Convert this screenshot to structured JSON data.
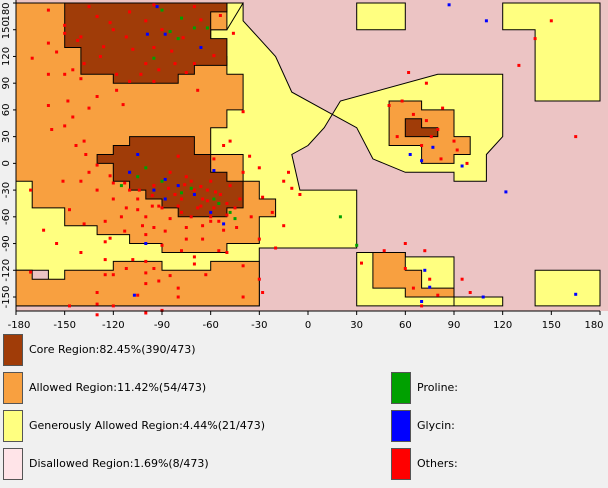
{
  "chart_data": {
    "type": "scatter",
    "title": "",
    "xlabel": "",
    "ylabel": "",
    "xlim": [
      -180,
      180
    ],
    "ylim": [
      -180,
      180
    ],
    "x_ticks": [
      -180,
      -150,
      -120,
      -90,
      -60,
      -30,
      0,
      30,
      60,
      90,
      120,
      150,
      180
    ],
    "y_ticks": [
      180,
      150,
      120,
      90,
      60,
      30,
      0,
      -30,
      -60,
      -90,
      -120,
      -150
    ],
    "regions": [
      {
        "name": "Disallowed Region",
        "color": "#ecc4c4"
      },
      {
        "name": "Generously Allowed Region",
        "color": "#ffff80"
      },
      {
        "name": "Allowed Region",
        "color": "#f8a040"
      },
      {
        "name": "Core Region",
        "color": "#a03c08"
      }
    ],
    "series": [
      {
        "name": "Proline",
        "color": "#00a000",
        "points": [
          [
            -90,
            172
          ],
          [
            -78,
            163
          ],
          [
            -70,
            152
          ],
          [
            -85,
            148
          ],
          [
            -95,
            118
          ],
          [
            -62,
            152
          ],
          [
            -80,
            140
          ],
          [
            -88,
            -40
          ],
          [
            -55,
            -45
          ],
          [
            -48,
            -55
          ],
          [
            -115,
            -25
          ],
          [
            -105,
            -15
          ],
          [
            -72,
            -28
          ],
          [
            -58,
            -40
          ],
          [
            -78,
            -33
          ],
          [
            -45,
            -62
          ],
          [
            -90,
            -20
          ],
          [
            -100,
            -5
          ],
          [
            20,
            -60
          ],
          [
            30,
            -92
          ]
        ]
      },
      {
        "name": "Glycin",
        "color": "#0000ff",
        "points": [
          [
            -105,
            10
          ],
          [
            -95,
            -30
          ],
          [
            -80,
            -25
          ],
          [
            -110,
            -10
          ],
          [
            -88,
            -40
          ],
          [
            -60,
            -55
          ],
          [
            -88,
            145
          ],
          [
            -66,
            130
          ],
          [
            -99,
            145
          ],
          [
            -58,
            -8
          ],
          [
            -93,
            176
          ],
          [
            -52,
            -68
          ],
          [
            -100,
            -90
          ],
          [
            -107,
            -148
          ],
          [
            70,
            -155
          ],
          [
            -88,
            -18
          ],
          [
            -70,
            -35
          ],
          [
            72,
            -120
          ],
          [
            75,
            -139
          ],
          [
            108,
            -150
          ],
          [
            122,
            -32
          ],
          [
            165,
            -147
          ],
          [
            87,
            178
          ],
          [
            110,
            160
          ],
          [
            95,
            -3
          ],
          [
            77,
            18
          ],
          [
            63,
            10
          ],
          [
            70,
            3
          ]
        ]
      },
      {
        "name": "Others",
        "color": "#ff0000",
        "points": [
          [
            -171,
            -30
          ],
          [
            -171,
            -122
          ],
          [
            -160,
            172
          ],
          [
            -150,
            155
          ],
          [
            -140,
            142
          ],
          [
            -130,
            165
          ],
          [
            -110,
            170
          ],
          [
            -100,
            160
          ],
          [
            -120,
            150
          ],
          [
            -108,
            128
          ],
          [
            -128,
            120
          ],
          [
            -142,
            138
          ],
          [
            -155,
            125
          ],
          [
            -118,
            100
          ],
          [
            -100,
            112
          ],
          [
            -95,
            130
          ],
          [
            -112,
            142
          ],
          [
            -90,
            150
          ],
          [
            -145,
            105
          ],
          [
            -160,
            100
          ],
          [
            -138,
            112
          ],
          [
            -118,
            82
          ],
          [
            -130,
            75
          ],
          [
            -150,
            100
          ],
          [
            -110,
            92
          ],
          [
            -95,
            92
          ],
          [
            -75,
            102
          ],
          [
            -68,
            82
          ],
          [
            -82,
            112
          ],
          [
            -140,
            95
          ],
          [
            -160,
            65
          ],
          [
            -148,
            70
          ],
          [
            -138,
            25
          ],
          [
            -150,
            42
          ],
          [
            -125,
            -65
          ],
          [
            -105,
            -52
          ],
          [
            -95,
            -72
          ],
          [
            -75,
            -85
          ],
          [
            -55,
            -98
          ],
          [
            -70,
            -105
          ],
          [
            -72,
            -60
          ],
          [
            -60,
            -60
          ],
          [
            -65,
            -70
          ],
          [
            -55,
            -65
          ],
          [
            -50,
            -45
          ],
          [
            -62,
            -30
          ],
          [
            -60,
            -20
          ],
          [
            -58,
            -50
          ],
          [
            -80,
            -48
          ],
          [
            -90,
            -50
          ],
          [
            -100,
            -60
          ],
          [
            -112,
            -50
          ],
          [
            -120,
            -40
          ],
          [
            -130,
            -30
          ],
          [
            -140,
            -20
          ],
          [
            -135,
            -10
          ],
          [
            -120,
            -22
          ],
          [
            -105,
            -40
          ],
          [
            -95,
            -25
          ],
          [
            -85,
            -10
          ],
          [
            -75,
            -15
          ],
          [
            -65,
            -40
          ],
          [
            -70,
            -30
          ],
          [
            -82,
            -35
          ],
          [
            -92,
            -48
          ],
          [
            -78,
            -55
          ],
          [
            -66,
            -48
          ],
          [
            -54,
            -35
          ],
          [
            -48,
            -25
          ],
          [
            -42,
            -40
          ],
          [
            -45,
            -50
          ],
          [
            -60,
            -65
          ],
          [
            -75,
            -72
          ],
          [
            -85,
            -62
          ],
          [
            -96,
            -48
          ],
          [
            -110,
            -30
          ],
          [
            -115,
            -60
          ],
          [
            -100,
            -80
          ],
          [
            -88,
            -76
          ],
          [
            -78,
            -40
          ],
          [
            -72,
            -20
          ],
          [
            -68,
            -50
          ],
          [
            -62,
            -42
          ],
          [
            -57,
            -32
          ],
          [
            -50,
            -58
          ],
          [
            -44,
            -72
          ],
          [
            -30,
            -85
          ],
          [
            -20,
            -95
          ],
          [
            -15,
            -70
          ],
          [
            -22,
            -55
          ],
          [
            -10,
            -28
          ],
          [
            -5,
            -35
          ],
          [
            -12,
            -10
          ],
          [
            -30,
            -5
          ],
          [
            -40,
            -10
          ],
          [
            -36,
            8
          ],
          [
            -52,
            20
          ],
          [
            -48,
            25
          ],
          [
            -80,
            8
          ],
          [
            -58,
            5
          ],
          [
            -66,
            -26
          ],
          [
            -76,
            -24
          ],
          [
            -86,
            -28
          ],
          [
            -96,
            -36
          ],
          [
            -104,
            -30
          ],
          [
            -113,
            -22
          ],
          [
            -122,
            -14
          ],
          [
            -130,
            -2
          ],
          [
            -137,
            10
          ],
          [
            -143,
            20
          ],
          [
            -151,
            -20
          ],
          [
            -163,
            -75
          ],
          [
            -155,
            -90
          ],
          [
            -140,
            -100
          ],
          [
            -125,
            -108
          ],
          [
            -112,
            -118
          ],
          [
            -100,
            -123
          ],
          [
            -92,
            -132
          ],
          [
            -80,
            -140
          ],
          [
            -130,
            -145
          ],
          [
            -120,
            -125
          ],
          [
            -100,
            -168
          ],
          [
            -130,
            -170
          ],
          [
            -147,
            -160
          ],
          [
            -130,
            -158
          ],
          [
            -125,
            -125
          ],
          [
            -105,
            -148
          ],
          [
            -90,
            -165
          ],
          [
            -80,
            -150
          ],
          [
            -100,
            -110
          ],
          [
            -63,
            -125
          ],
          [
            -70,
            -113
          ],
          [
            -85,
            -126
          ],
          [
            -95,
            -118
          ],
          [
            -108,
            -108
          ],
          [
            -30,
            -130
          ],
          [
            -40,
            -115
          ],
          [
            -50,
            -100
          ],
          [
            -40,
            -150
          ],
          [
            -28,
            -145
          ],
          [
            33,
            -112
          ],
          [
            47,
            -98
          ],
          [
            60,
            -90
          ],
          [
            72,
            -98
          ],
          [
            60,
            -118
          ],
          [
            65,
            -140
          ],
          [
            75,
            -130
          ],
          [
            70,
            -160
          ],
          [
            80,
            -148
          ],
          [
            95,
            -130
          ],
          [
            100,
            -145
          ],
          [
            62,
            102
          ],
          [
            73,
            90
          ],
          [
            83,
            62
          ],
          [
            65,
            55
          ],
          [
            73,
            48
          ],
          [
            80,
            38
          ],
          [
            90,
            25
          ],
          [
            76,
            30
          ],
          [
            70,
            20
          ],
          [
            55,
            30
          ],
          [
            50,
            65
          ],
          [
            58,
            70
          ],
          [
            82,
            5
          ],
          [
            92,
            15
          ],
          [
            98,
            0
          ],
          [
            165,
            30
          ],
          [
            150,
            160
          ],
          [
            140,
            140
          ],
          [
            130,
            110
          ],
          [
            -170,
            118
          ],
          [
            -160,
            135
          ],
          [
            -150,
            146
          ],
          [
            -126,
            131
          ],
          [
            -84,
            126
          ],
          [
            -77,
            141
          ],
          [
            -92,
            105
          ],
          [
            -103,
            100
          ],
          [
            -114,
            66
          ],
          [
            -135,
            62
          ],
          [
            -145,
            52
          ],
          [
            -158,
            38
          ],
          [
            -40,
            58
          ],
          [
            -15,
            -20
          ],
          [
            -28,
            -38
          ],
          [
            -35,
            -60
          ],
          [
            -52,
            -75
          ],
          [
            -65,
            -85
          ],
          [
            -78,
            -98
          ],
          [
            -90,
            -92
          ],
          [
            -102,
            -70
          ],
          [
            -113,
            -76
          ],
          [
            -125,
            -88
          ],
          [
            -138,
            -68
          ],
          [
            -147,
            -52
          ],
          [
            -100,
            -135
          ],
          [
            -120,
            -160
          ],
          [
            -122,
            -84
          ],
          [
            -95,
            178
          ],
          [
            -70,
            176
          ],
          [
            -66,
            161
          ],
          [
            -54,
            166
          ],
          [
            -46,
            146
          ],
          [
            -58,
            121
          ],
          [
            -70,
            112
          ],
          [
            -122,
            158
          ],
          [
            -135,
            176
          ]
        ]
      }
    ]
  },
  "legend": {
    "regions": [
      {
        "label": "Core Region:82.45%(390/473)",
        "color": "#a03c08"
      },
      {
        "label": "Allowed Region:11.42%(54/473)",
        "color": "#f8a040"
      },
      {
        "label": "Generously Allowed Region:4.44%(21/473)",
        "color": "#ffff80"
      },
      {
        "label": "Disallowed Region:1.69%(8/473)",
        "color": "#ffe4e8"
      }
    ],
    "residues": [
      {
        "label": "Proline:",
        "color": "#00a000"
      },
      {
        "label": "Glycin:",
        "color": "#0000ff"
      },
      {
        "label": "Others:",
        "color": "#ff0000"
      }
    ]
  }
}
